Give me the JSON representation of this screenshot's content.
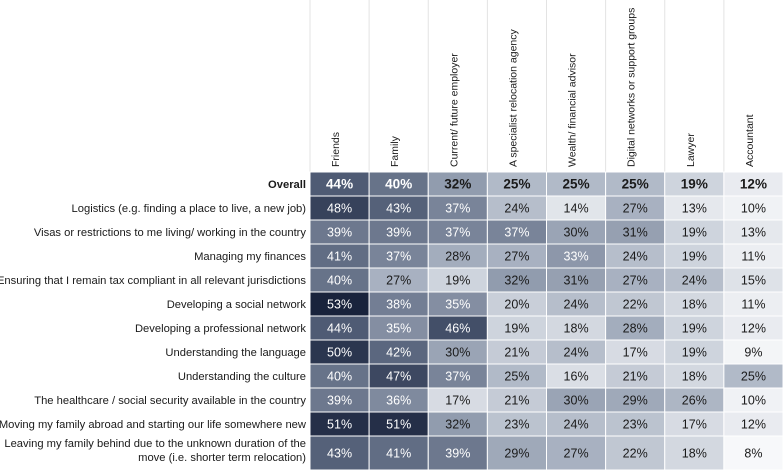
{
  "chart_data": {
    "type": "heatmap",
    "columns": [
      "Friends",
      "Family",
      "Current/ future employer",
      "A specialist relocation agency",
      "Wealth/ financial advisor",
      "Digital networks or support groups",
      "Lawyer",
      "Accountant"
    ],
    "rows": [
      {
        "label": [
          "Overall"
        ],
        "bold": true,
        "values": [
          44,
          40,
          32,
          25,
          25,
          25,
          19,
          12
        ]
      },
      {
        "label": [
          "Logistics (e.g. finding a place to live, a new job)"
        ],
        "values": [
          48,
          43,
          37,
          24,
          14,
          27,
          13,
          10
        ]
      },
      {
        "label": [
          "Visas or restrictions to me living/ working in the country"
        ],
        "values": [
          39,
          39,
          37,
          37,
          30,
          31,
          19,
          13
        ]
      },
      {
        "label": [
          "Managing my finances"
        ],
        "values": [
          41,
          37,
          28,
          27,
          33,
          24,
          19,
          11
        ]
      },
      {
        "label": [
          "Ensuring that I remain tax compliant in all relevant jurisdictions"
        ],
        "values": [
          40,
          27,
          19,
          32,
          31,
          27,
          24,
          15
        ]
      },
      {
        "label": [
          "Developing a social network"
        ],
        "values": [
          53,
          38,
          35,
          20,
          24,
          22,
          18,
          11
        ]
      },
      {
        "label": [
          "Developing a professional network"
        ],
        "values": [
          44,
          35,
          46,
          19,
          18,
          28,
          19,
          12
        ]
      },
      {
        "label": [
          "Understanding the language"
        ],
        "values": [
          50,
          42,
          30,
          21,
          24,
          17,
          19,
          9
        ]
      },
      {
        "label": [
          "Understanding the culture"
        ],
        "values": [
          40,
          47,
          37,
          25,
          16,
          21,
          18,
          25
        ]
      },
      {
        "label": [
          "The healthcare / social security available in the country"
        ],
        "values": [
          39,
          36,
          17,
          21,
          30,
          29,
          26,
          10
        ]
      },
      {
        "label": [
          "Moving my family abroad and starting our life somewhere new"
        ],
        "values": [
          51,
          51,
          32,
          23,
          24,
          23,
          17,
          12
        ]
      },
      {
        "label": [
          "Leaving my family behind due to the unknown duration of the",
          "move (i.e. shorter term relocation)"
        ],
        "values": [
          43,
          41,
          39,
          29,
          27,
          22,
          18,
          8
        ]
      }
    ],
    "value_suffix": "%",
    "color_scale": [
      {
        "value": 8,
        "color": "#f7f8fa"
      },
      {
        "value": 18,
        "color": "#d3d8e0"
      },
      {
        "value": 28,
        "color": "#a3adbd"
      },
      {
        "value": 36,
        "color": "#7f8a9e"
      },
      {
        "value": 44,
        "color": "#4f5b74"
      },
      {
        "value": 53,
        "color": "#19233c"
      }
    ],
    "text_threshold": 33,
    "light_text_color": "#ffffff",
    "dark_text_color": "#1a1a1a"
  }
}
